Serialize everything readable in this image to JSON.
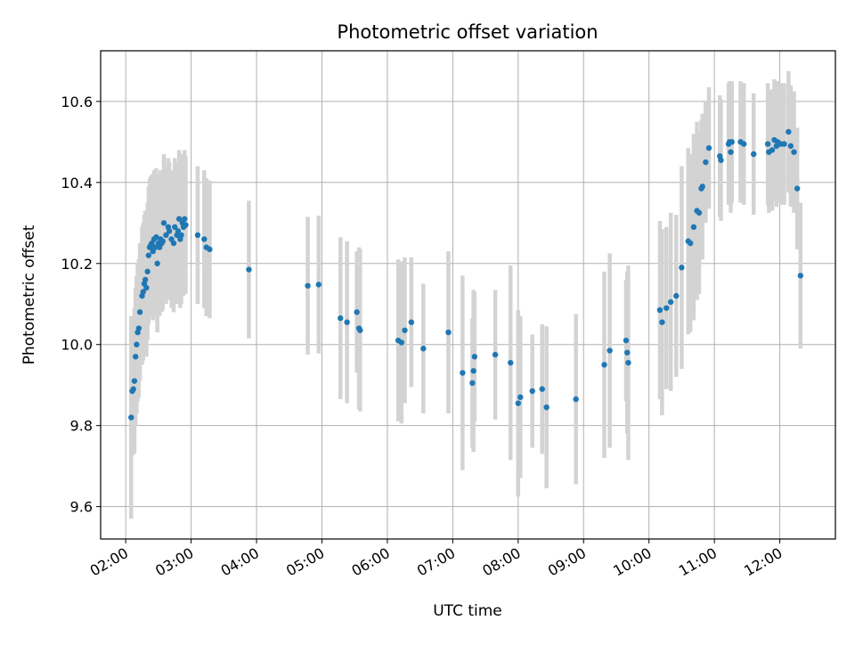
{
  "chart_data": {
    "type": "scatter",
    "title": "Photometric offset variation",
    "xlabel": "UTC time",
    "ylabel": "Photometric offset",
    "xlim": [
      "01:37",
      "12:51"
    ],
    "ylim": [
      9.52,
      10.725
    ],
    "grid": true,
    "x_ticks": [
      "02:00",
      "03:00",
      "04:00",
      "05:00",
      "06:00",
      "07:00",
      "08:00",
      "09:00",
      "10:00",
      "11:00",
      "12:00"
    ],
    "y_ticks": [
      9.6,
      9.8,
      10.0,
      10.2,
      10.4,
      10.6
    ],
    "y_tick_labels": [
      "9.6",
      "9.8",
      "10.0",
      "10.2",
      "10.4",
      "10.6"
    ],
    "point_color": "#1f77b4",
    "errorbar_color": "#d3d3d3",
    "points": [
      {
        "x": "02:05",
        "y": 9.82,
        "err": 0.25
      },
      {
        "x": "02:06",
        "y": 9.885,
        "err": 0.16
      },
      {
        "x": "02:07",
        "y": 9.89,
        "err": 0.15
      },
      {
        "x": "02:08",
        "y": 9.91,
        "err": 0.18
      },
      {
        "x": "02:09",
        "y": 9.97,
        "err": 0.17
      },
      {
        "x": "02:10",
        "y": 10.0,
        "err": 0.17
      },
      {
        "x": "02:11",
        "y": 10.03,
        "err": 0.17
      },
      {
        "x": "02:12",
        "y": 10.04,
        "err": 0.17
      },
      {
        "x": "02:13",
        "y": 10.08,
        "err": 0.17
      },
      {
        "x": "02:15",
        "y": 10.12,
        "err": 0.17
      },
      {
        "x": "02:16",
        "y": 10.13,
        "err": 0.17
      },
      {
        "x": "02:17",
        "y": 10.15,
        "err": 0.17
      },
      {
        "x": "02:18",
        "y": 10.16,
        "err": 0.17
      },
      {
        "x": "02:19",
        "y": 10.14,
        "err": 0.17
      },
      {
        "x": "02:20",
        "y": 10.18,
        "err": 0.17
      },
      {
        "x": "02:21",
        "y": 10.22,
        "err": 0.17
      },
      {
        "x": "02:22",
        "y": 10.24,
        "err": 0.17
      },
      {
        "x": "02:23",
        "y": 10.245,
        "err": 0.17
      },
      {
        "x": "02:24",
        "y": 10.25,
        "err": 0.17
      },
      {
        "x": "02:25",
        "y": 10.23,
        "err": 0.17
      },
      {
        "x": "02:26",
        "y": 10.26,
        "err": 0.17
      },
      {
        "x": "02:27",
        "y": 10.24,
        "err": 0.17
      },
      {
        "x": "02:28",
        "y": 10.265,
        "err": 0.17
      },
      {
        "x": "02:29",
        "y": 10.2,
        "err": 0.17
      },
      {
        "x": "02:30",
        "y": 10.25,
        "err": 0.17
      },
      {
        "x": "02:31",
        "y": 10.24,
        "err": 0.17
      },
      {
        "x": "02:32",
        "y": 10.26,
        "err": 0.17
      },
      {
        "x": "02:33",
        "y": 10.25,
        "err": 0.17
      },
      {
        "x": "02:34",
        "y": 10.255,
        "err": 0.17
      },
      {
        "x": "02:35",
        "y": 10.3,
        "err": 0.17
      },
      {
        "x": "02:37",
        "y": 10.27,
        "err": 0.17
      },
      {
        "x": "02:39",
        "y": 10.29,
        "err": 0.17
      },
      {
        "x": "02:40",
        "y": 10.28,
        "err": 0.17
      },
      {
        "x": "02:42",
        "y": 10.26,
        "err": 0.17
      },
      {
        "x": "02:44",
        "y": 10.25,
        "err": 0.17
      },
      {
        "x": "02:45",
        "y": 10.29,
        "err": 0.17
      },
      {
        "x": "02:47",
        "y": 10.27,
        "err": 0.17
      },
      {
        "x": "02:48",
        "y": 10.28,
        "err": 0.17
      },
      {
        "x": "02:49",
        "y": 10.31,
        "err": 0.17
      },
      {
        "x": "02:50",
        "y": 10.26,
        "err": 0.17
      },
      {
        "x": "02:51",
        "y": 10.27,
        "err": 0.17
      },
      {
        "x": "02:52",
        "y": 10.3,
        "err": 0.17
      },
      {
        "x": "02:53",
        "y": 10.29,
        "err": 0.17
      },
      {
        "x": "02:54",
        "y": 10.31,
        "err": 0.17
      },
      {
        "x": "02:55",
        "y": 10.295,
        "err": 0.17
      },
      {
        "x": "03:06",
        "y": 10.27,
        "err": 0.17
      },
      {
        "x": "03:12",
        "y": 10.26,
        "err": 0.17
      },
      {
        "x": "03:14",
        "y": 10.24,
        "err": 0.17
      },
      {
        "x": "03:17",
        "y": 10.235,
        "err": 0.17
      },
      {
        "x": "03:53",
        "y": 10.185,
        "err": 0.17
      },
      {
        "x": "04:47",
        "y": 10.145,
        "err": 0.17
      },
      {
        "x": "04:57",
        "y": 10.148,
        "err": 0.17
      },
      {
        "x": "05:17",
        "y": 10.065,
        "err": 0.2
      },
      {
        "x": "05:23",
        "y": 10.055,
        "err": 0.2
      },
      {
        "x": "05:32",
        "y": 10.08,
        "err": 0.15
      },
      {
        "x": "05:34",
        "y": 10.04,
        "err": 0.2
      },
      {
        "x": "05:35",
        "y": 10.035,
        "err": 0.2
      },
      {
        "x": "06:10",
        "y": 10.01,
        "err": 0.2
      },
      {
        "x": "06:13",
        "y": 10.005,
        "err": 0.2
      },
      {
        "x": "06:16",
        "y": 10.035,
        "err": 0.18
      },
      {
        "x": "06:22",
        "y": 10.055,
        "err": 0.16
      },
      {
        "x": "06:33",
        "y": 9.99,
        "err": 0.16
      },
      {
        "x": "06:56",
        "y": 10.03,
        "err": 0.2
      },
      {
        "x": "07:09",
        "y": 9.93,
        "err": 0.24
      },
      {
        "x": "07:18",
        "y": 9.905,
        "err": 0.16
      },
      {
        "x": "07:19",
        "y": 9.935,
        "err": 0.2
      },
      {
        "x": "07:20",
        "y": 9.97,
        "err": 0.16
      },
      {
        "x": "07:39",
        "y": 9.975,
        "err": 0.16
      },
      {
        "x": "07:53",
        "y": 9.955,
        "err": 0.24
      },
      {
        "x": "08:00",
        "y": 9.855,
        "err": 0.23
      },
      {
        "x": "08:02",
        "y": 9.87,
        "err": 0.2
      },
      {
        "x": "08:13",
        "y": 9.885,
        "err": 0.14
      },
      {
        "x": "08:22",
        "y": 9.89,
        "err": 0.16
      },
      {
        "x": "08:26",
        "y": 9.845,
        "err": 0.2
      },
      {
        "x": "08:53",
        "y": 9.865,
        "err": 0.21
      },
      {
        "x": "09:19",
        "y": 9.95,
        "err": 0.23
      },
      {
        "x": "09:24",
        "y": 9.985,
        "err": 0.24
      },
      {
        "x": "09:39",
        "y": 10.01,
        "err": 0.15
      },
      {
        "x": "09:40",
        "y": 9.98,
        "err": 0.2
      },
      {
        "x": "09:41",
        "y": 9.955,
        "err": 0.24
      },
      {
        "x": "10:10",
        "y": 10.085,
        "err": 0.22
      },
      {
        "x": "10:12",
        "y": 10.055,
        "err": 0.23
      },
      {
        "x": "10:16",
        "y": 10.09,
        "err": 0.2
      },
      {
        "x": "10:20",
        "y": 10.105,
        "err": 0.22
      },
      {
        "x": "10:25",
        "y": 10.12,
        "err": 0.2
      },
      {
        "x": "10:30",
        "y": 10.19,
        "err": 0.25
      },
      {
        "x": "10:36",
        "y": 10.255,
        "err": 0.23
      },
      {
        "x": "10:38",
        "y": 10.25,
        "err": 0.22
      },
      {
        "x": "10:41",
        "y": 10.29,
        "err": 0.23
      },
      {
        "x": "10:44",
        "y": 10.33,
        "err": 0.22
      },
      {
        "x": "10:46",
        "y": 10.325,
        "err": 0.2
      },
      {
        "x": "10:48",
        "y": 10.385,
        "err": 0.17
      },
      {
        "x": "10:49",
        "y": 10.39,
        "err": 0.18
      },
      {
        "x": "10:52",
        "y": 10.45,
        "err": 0.15
      },
      {
        "x": "10:55",
        "y": 10.485,
        "err": 0.15
      },
      {
        "x": "11:05",
        "y": 10.465,
        "err": 0.15
      },
      {
        "x": "11:06",
        "y": 10.455,
        "err": 0.15
      },
      {
        "x": "11:13",
        "y": 10.495,
        "err": 0.15
      },
      {
        "x": "11:14",
        "y": 10.5,
        "err": 0.15
      },
      {
        "x": "11:15",
        "y": 10.475,
        "err": 0.15
      },
      {
        "x": "11:16",
        "y": 10.5,
        "err": 0.15
      },
      {
        "x": "11:24",
        "y": 10.5,
        "err": 0.15
      },
      {
        "x": "11:27",
        "y": 10.495,
        "err": 0.15
      },
      {
        "x": "11:36",
        "y": 10.47,
        "err": 0.15
      },
      {
        "x": "11:49",
        "y": 10.495,
        "err": 0.15
      },
      {
        "x": "11:50",
        "y": 10.475,
        "err": 0.15
      },
      {
        "x": "11:53",
        "y": 10.48,
        "err": 0.15
      },
      {
        "x": "11:55",
        "y": 10.505,
        "err": 0.15
      },
      {
        "x": "11:57",
        "y": 10.49,
        "err": 0.15
      },
      {
        "x": "11:58",
        "y": 10.5,
        "err": 0.15
      },
      {
        "x": "12:01",
        "y": 10.495,
        "err": 0.15
      },
      {
        "x": "12:04",
        "y": 10.495,
        "err": 0.15
      },
      {
        "x": "12:08",
        "y": 10.525,
        "err": 0.15
      },
      {
        "x": "12:10",
        "y": 10.49,
        "err": 0.15
      },
      {
        "x": "12:13",
        "y": 10.475,
        "err": 0.15
      },
      {
        "x": "12:16",
        "y": 10.385,
        "err": 0.15
      },
      {
        "x": "12:19",
        "y": 10.17,
        "err": 0.18
      }
    ]
  }
}
